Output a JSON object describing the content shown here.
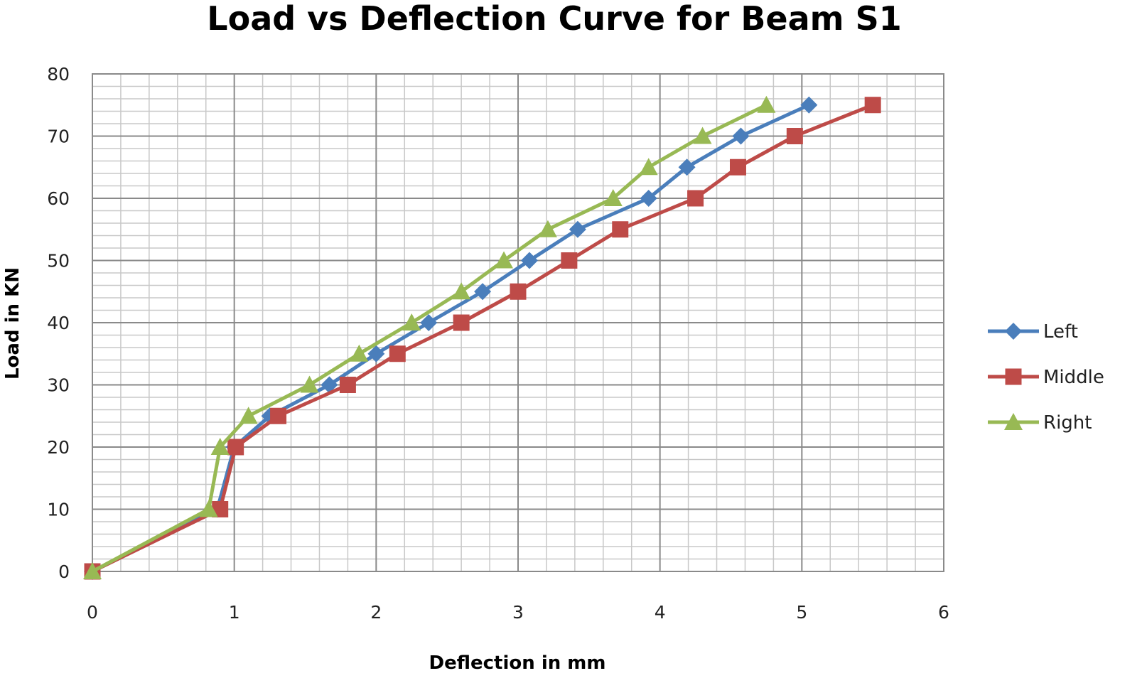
{
  "chart_data": {
    "type": "line",
    "title": "Load vs Deflection Curve for Beam S1",
    "xlabel": "Deflection in mm",
    "ylabel": "Load in KN",
    "xlim": [
      0,
      6
    ],
    "ylim": [
      0,
      80
    ],
    "x_ticks": [
      0,
      1,
      2,
      3,
      4,
      5,
      6
    ],
    "y_ticks": [
      0,
      10,
      20,
      30,
      40,
      50,
      60,
      70,
      80
    ],
    "grid": true,
    "legend_position": "right",
    "series": [
      {
        "name": "Left",
        "color": "#4a7ebb",
        "marker": "diamond",
        "points": [
          [
            0,
            0
          ],
          [
            0.88,
            10
          ],
          [
            1.0,
            20
          ],
          [
            1.25,
            25
          ],
          [
            1.67,
            30
          ],
          [
            2.0,
            35
          ],
          [
            2.37,
            40
          ],
          [
            2.75,
            45
          ],
          [
            3.08,
            50
          ],
          [
            3.42,
            55
          ],
          [
            3.92,
            60
          ],
          [
            4.19,
            65
          ],
          [
            4.57,
            70
          ],
          [
            5.05,
            75
          ]
        ]
      },
      {
        "name": "Middle",
        "color": "#be4b48",
        "marker": "square",
        "points": [
          [
            0,
            0
          ],
          [
            0.9,
            10
          ],
          [
            1.01,
            20
          ],
          [
            1.31,
            25
          ],
          [
            1.8,
            30
          ],
          [
            2.15,
            35
          ],
          [
            2.6,
            40
          ],
          [
            3.0,
            45
          ],
          [
            3.36,
            50
          ],
          [
            3.72,
            55
          ],
          [
            4.25,
            60
          ],
          [
            4.55,
            65
          ],
          [
            4.95,
            70
          ],
          [
            5.5,
            75
          ]
        ]
      },
      {
        "name": "Right",
        "color": "#98b954",
        "marker": "triangle",
        "points": [
          [
            0,
            0
          ],
          [
            0.82,
            10
          ],
          [
            0.9,
            20
          ],
          [
            1.1,
            25
          ],
          [
            1.53,
            30
          ],
          [
            1.88,
            35
          ],
          [
            2.25,
            40
          ],
          [
            2.6,
            45
          ],
          [
            2.9,
            50
          ],
          [
            3.21,
            55
          ],
          [
            3.67,
            60
          ],
          [
            3.92,
            65
          ],
          [
            4.3,
            70
          ],
          [
            4.75,
            75
          ]
        ]
      }
    ]
  }
}
